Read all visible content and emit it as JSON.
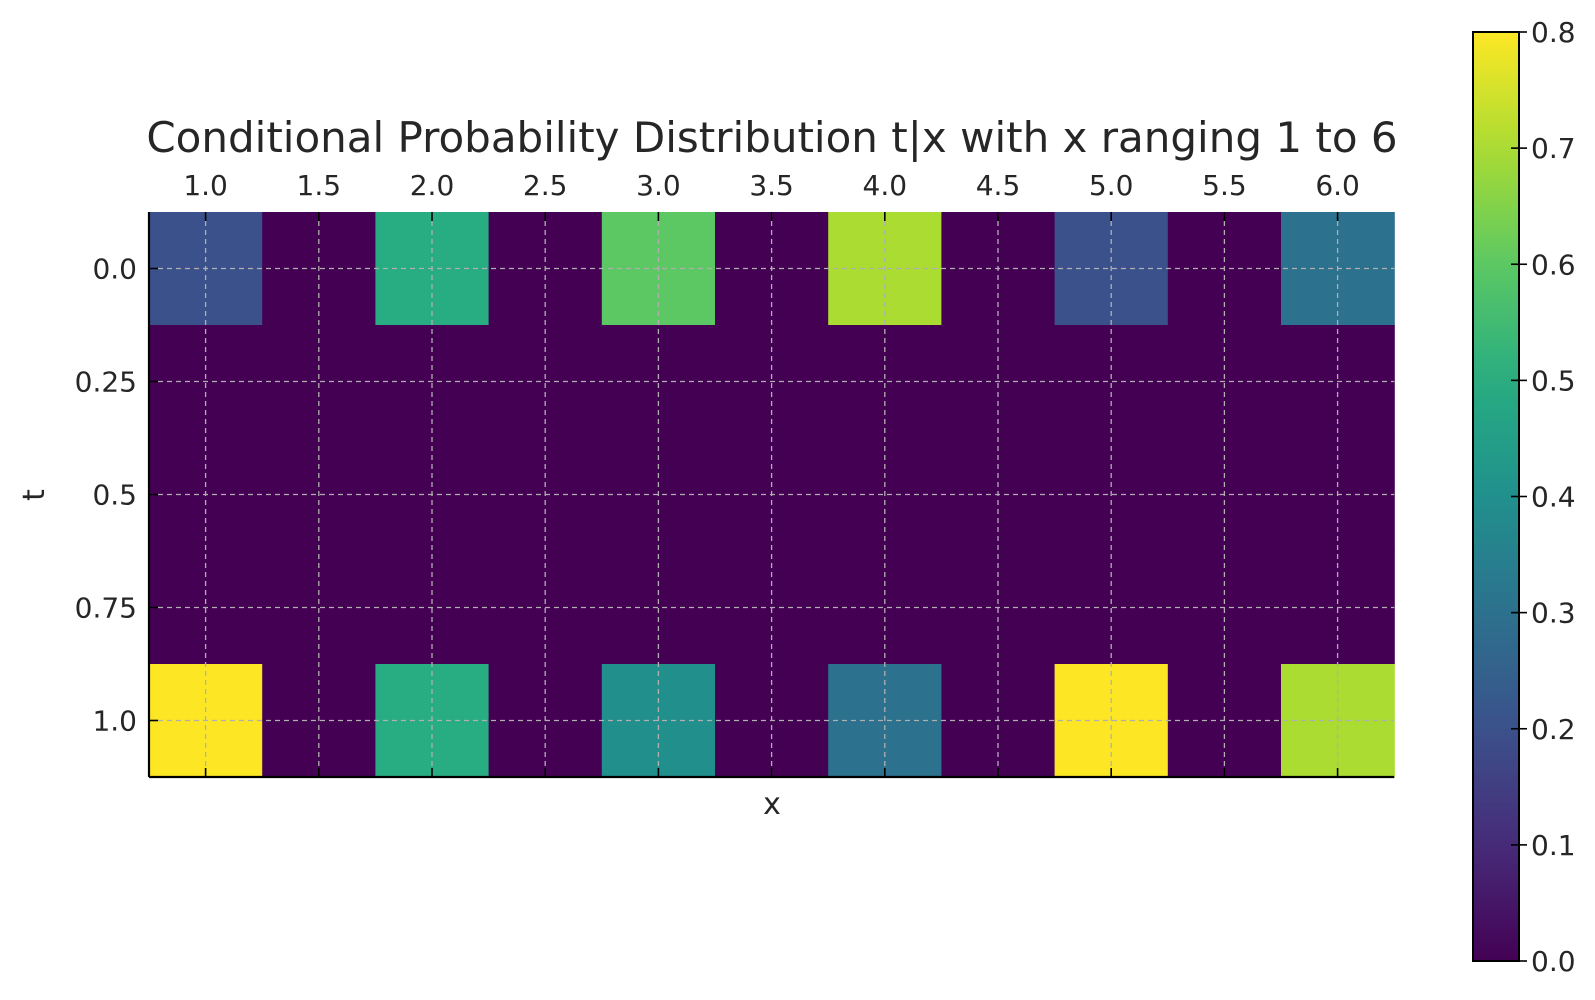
{
  "chart_data": {
    "type": "heatmap",
    "title": "Conditional Probability Distribution t|x with x ranging 1 to 6",
    "xlabel": "x",
    "ylabel": "t",
    "x_tick_labels": [
      "1.0",
      "1.5",
      "2.0",
      "2.5",
      "3.0",
      "3.5",
      "4.0",
      "4.5",
      "5.0",
      "5.5",
      "6.0"
    ],
    "y_tick_labels": [
      "0.0",
      "0.25",
      "0.5",
      "0.75",
      "1.0"
    ],
    "x_axis_position": "top",
    "grid": true,
    "values": [
      [
        0.2,
        0.0,
        0.5,
        0.0,
        0.6,
        0.0,
        0.7,
        0.0,
        0.2,
        0.0,
        0.3
      ],
      [
        0.0,
        0.0,
        0.0,
        0.0,
        0.0,
        0.0,
        0.0,
        0.0,
        0.0,
        0.0,
        0.0
      ],
      [
        0.0,
        0.0,
        0.0,
        0.0,
        0.0,
        0.0,
        0.0,
        0.0,
        0.0,
        0.0,
        0.0
      ],
      [
        0.0,
        0.0,
        0.0,
        0.0,
        0.0,
        0.0,
        0.0,
        0.0,
        0.0,
        0.0,
        0.0
      ],
      [
        0.8,
        0.0,
        0.5,
        0.0,
        0.4,
        0.0,
        0.3,
        0.0,
        0.8,
        0.0,
        0.7
      ]
    ],
    "colorbar": {
      "colormap": "viridis",
      "vmin": 0.0,
      "vmax": 0.8,
      "tick_labels": [
        "0.0",
        "0.1",
        "0.2",
        "0.3",
        "0.4",
        "0.5",
        "0.6",
        "0.7",
        "0.8"
      ]
    }
  }
}
